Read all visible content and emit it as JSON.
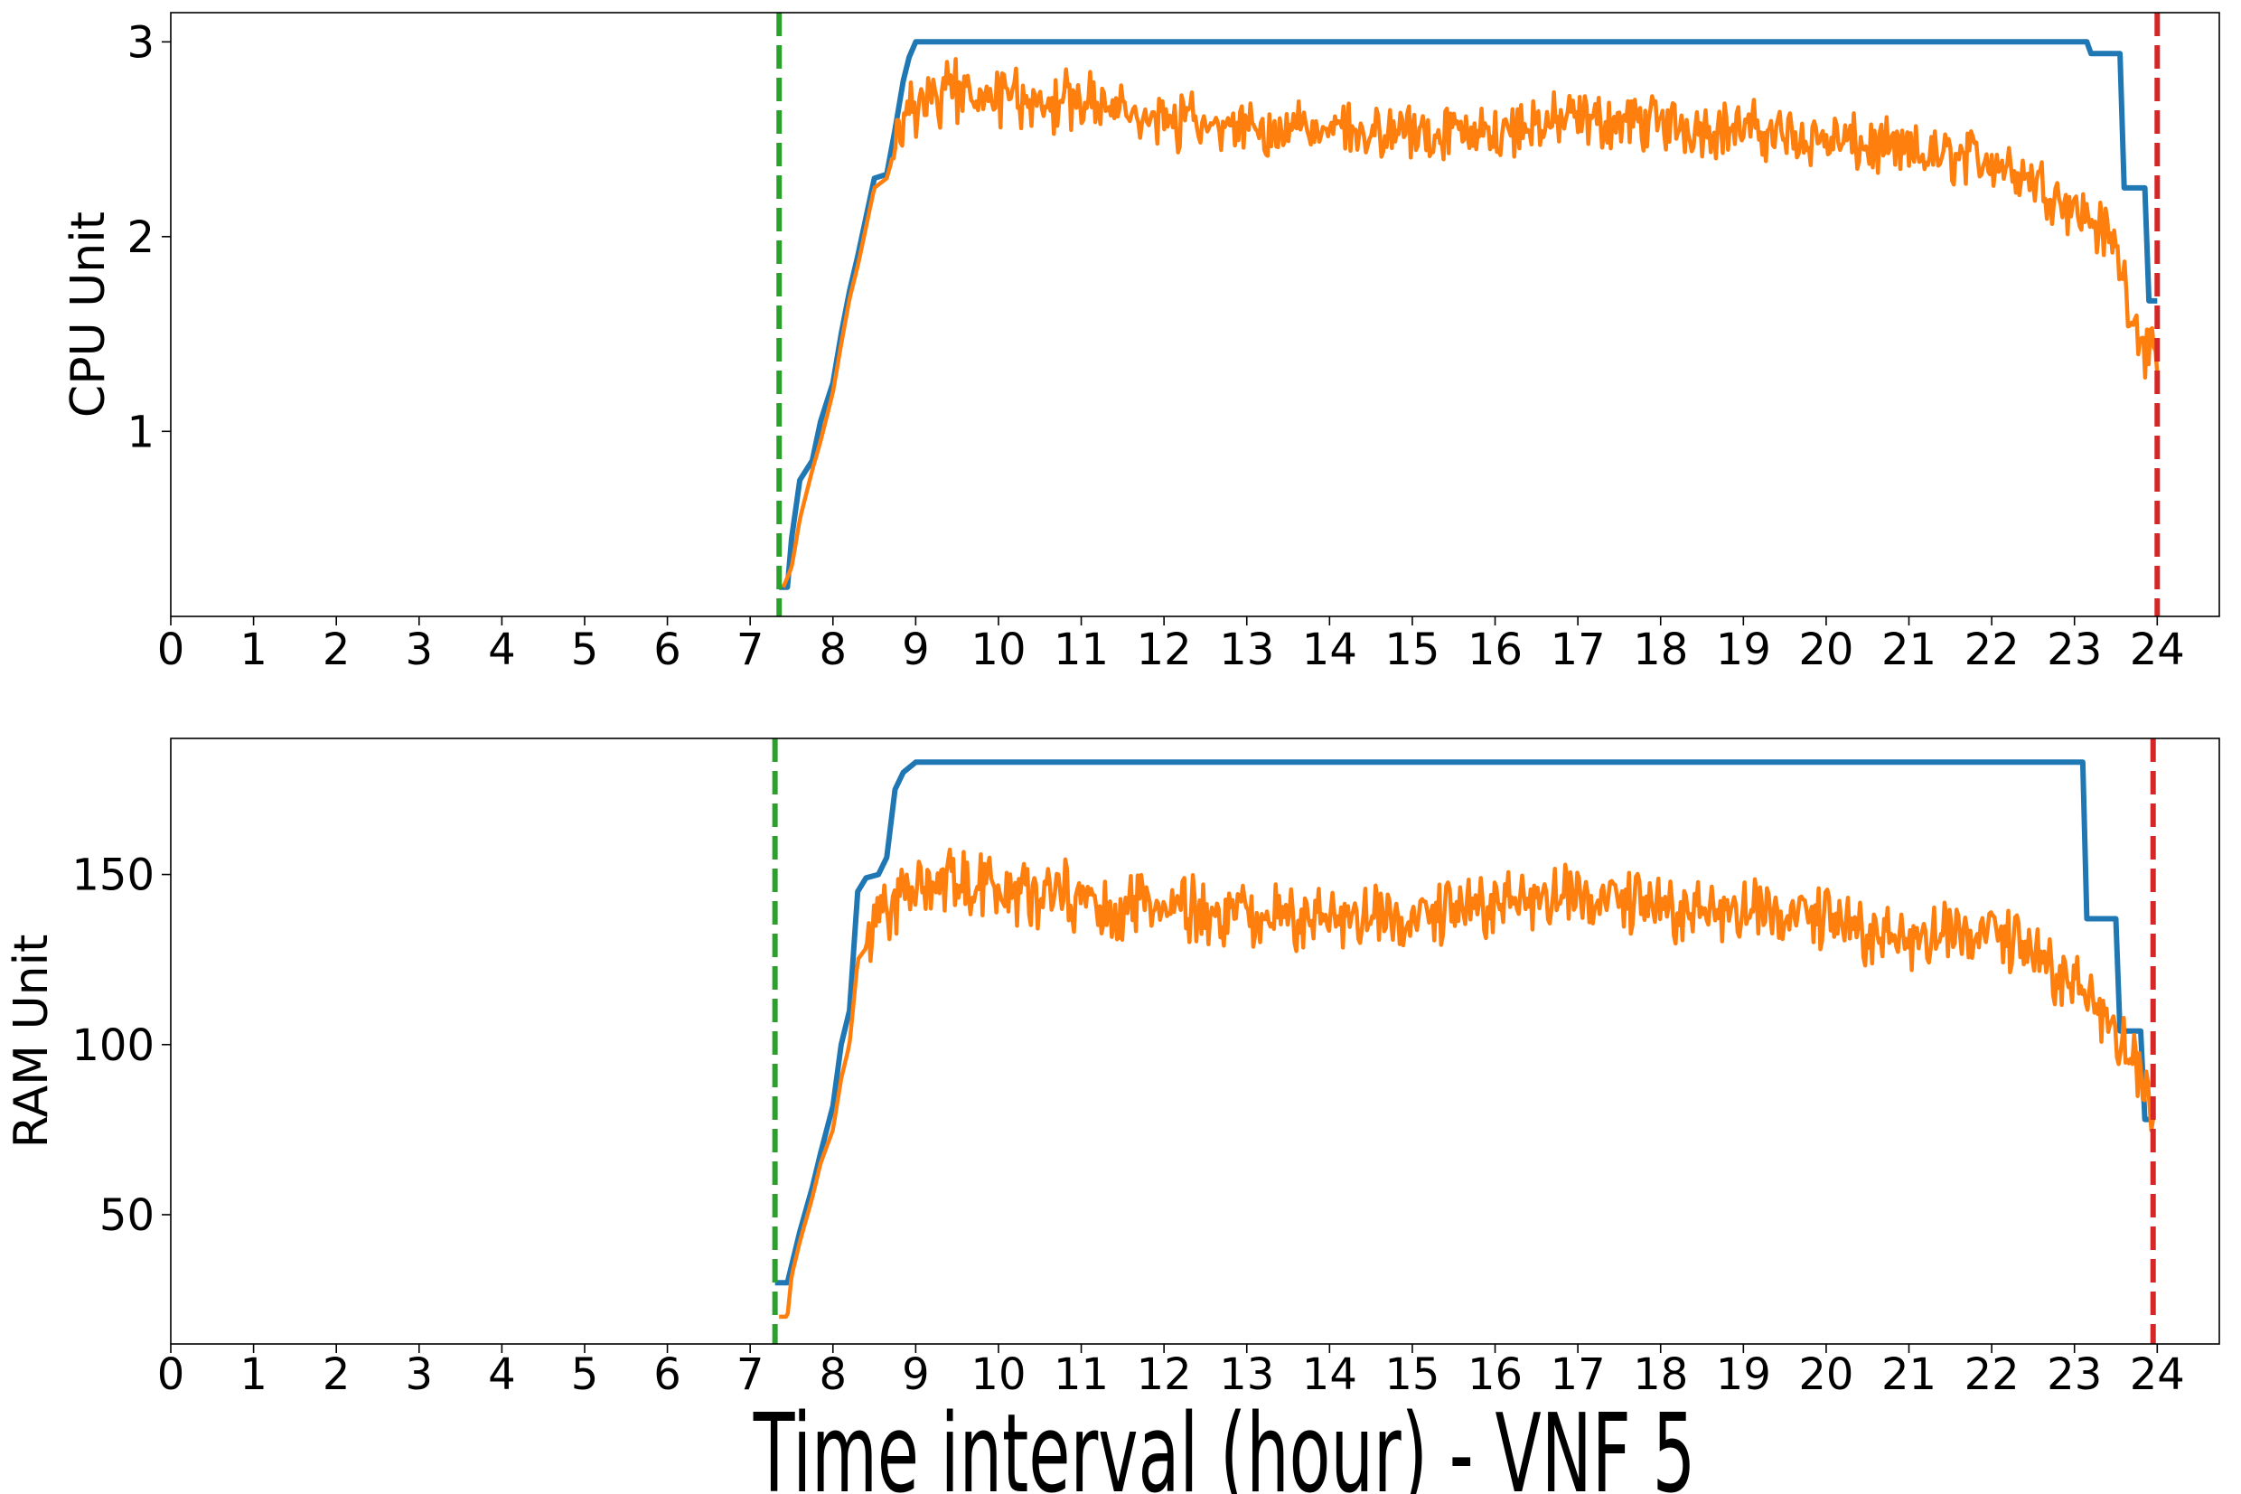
{
  "colors": {
    "allocated": "#1f77b4",
    "usage": "#ff7f0e",
    "start_marker": "#2ca02c",
    "end_marker": "#d62728"
  },
  "xlabel": "Time interval (hour) - VNF 5",
  "chart_data": [
    {
      "type": "line",
      "ylabel": "CPU Unit",
      "xlim": [
        0,
        24.75
      ],
      "ylim": [
        0.05,
        3.15
      ],
      "xticks": [
        0,
        1,
        2,
        3,
        4,
        5,
        6,
        7,
        8,
        9,
        10,
        11,
        12,
        13,
        14,
        15,
        16,
        17,
        18,
        19,
        20,
        21,
        22,
        23,
        24
      ],
      "xtick_labels": [
        "0",
        "1",
        "2",
        "3",
        "4",
        "5",
        "6",
        "7",
        "8",
        "9",
        "10",
        "11",
        "12",
        "13",
        "14",
        "15",
        "16",
        "17",
        "18",
        "19",
        "20",
        "21",
        "22",
        "23",
        "24"
      ],
      "yticks": [
        1,
        2,
        3
      ],
      "ytick_labels": [
        "1",
        "2",
        "3"
      ],
      "vlines": [
        {
          "x": 7.35,
          "color": "start_marker",
          "style": "dashed"
        },
        {
          "x": 24.0,
          "color": "end_marker",
          "style": "dashed"
        }
      ],
      "series": [
        {
          "color": "allocated",
          "points": [
            [
              7.35,
              0.2
            ],
            [
              7.45,
              0.2
            ],
            [
              7.5,
              0.45
            ],
            [
              7.6,
              0.75
            ],
            [
              7.75,
              0.85
            ],
            [
              7.85,
              1.05
            ],
            [
              8.0,
              1.25
            ],
            [
              8.1,
              1.5
            ],
            [
              8.2,
              1.72
            ],
            [
              8.3,
              1.9
            ],
            [
              8.4,
              2.1
            ],
            [
              8.5,
              2.3
            ],
            [
              8.65,
              2.32
            ],
            [
              8.75,
              2.55
            ],
            [
              8.85,
              2.8
            ],
            [
              8.92,
              2.92
            ],
            [
              9.0,
              3.0
            ],
            [
              23.15,
              3.0
            ],
            [
              23.2,
              2.94
            ],
            [
              23.55,
              2.94
            ],
            [
              23.6,
              2.25
            ],
            [
              23.85,
              2.25
            ],
            [
              23.9,
              1.67
            ],
            [
              24.0,
              1.67
            ]
          ]
        },
        {
          "color": "usage",
          "baseline": [
            [
              7.4,
              0.2
            ],
            [
              7.5,
              0.3
            ],
            [
              7.6,
              0.55
            ],
            [
              7.75,
              0.8
            ],
            [
              7.85,
              0.95
            ],
            [
              8.0,
              1.2
            ],
            [
              8.1,
              1.45
            ],
            [
              8.2,
              1.68
            ],
            [
              8.3,
              1.85
            ],
            [
              8.4,
              2.05
            ],
            [
              8.5,
              2.25
            ],
            [
              8.65,
              2.3
            ],
            [
              8.75,
              2.45
            ],
            [
              8.85,
              2.58
            ],
            [
              9.0,
              2.68
            ],
            [
              9.5,
              2.75
            ],
            [
              10.0,
              2.72
            ],
            [
              11.0,
              2.68
            ],
            [
              12.0,
              2.6
            ],
            [
              13.0,
              2.55
            ],
            [
              14.0,
              2.55
            ],
            [
              15.0,
              2.52
            ],
            [
              16.0,
              2.55
            ],
            [
              17.0,
              2.6
            ],
            [
              18.0,
              2.58
            ],
            [
              19.0,
              2.55
            ],
            [
              20.0,
              2.5
            ],
            [
              21.0,
              2.42
            ],
            [
              22.0,
              2.4
            ],
            [
              22.5,
              2.3
            ],
            [
              23.0,
              2.15
            ],
            [
              23.3,
              2.05
            ],
            [
              23.5,
              1.95
            ],
            [
              23.7,
              1.6
            ],
            [
              23.85,
              1.45
            ],
            [
              24.0,
              1.3
            ]
          ],
          "noise": 0.18,
          "noise_start": 8.7
        }
      ]
    },
    {
      "type": "line",
      "ylabel": "RAM Unit",
      "xlim": [
        0,
        24.75
      ],
      "ylim": [
        12,
        190
      ],
      "xticks": [
        0,
        1,
        2,
        3,
        4,
        5,
        6,
        7,
        8,
        9,
        10,
        11,
        12,
        13,
        14,
        15,
        16,
        17,
        18,
        19,
        20,
        21,
        22,
        23,
        24
      ],
      "xtick_labels": [
        "0",
        "1",
        "2",
        "3",
        "4",
        "5",
        "6",
        "7",
        "8",
        "9",
        "10",
        "11",
        "12",
        "13",
        "14",
        "15",
        "16",
        "17",
        "18",
        "19",
        "20",
        "21",
        "22",
        "23",
        "24"
      ],
      "yticks": [
        50,
        100,
        150
      ],
      "ytick_labels": [
        "50",
        "100",
        "150"
      ],
      "vlines": [
        {
          "x": 7.3,
          "color": "start_marker",
          "style": "dashed"
        },
        {
          "x": 23.95,
          "color": "end_marker",
          "style": "dashed"
        }
      ],
      "series": [
        {
          "color": "allocated",
          "points": [
            [
              7.3,
              30
            ],
            [
              7.45,
              30
            ],
            [
              7.5,
              35
            ],
            [
              7.6,
              45
            ],
            [
              7.75,
              58
            ],
            [
              7.85,
              68
            ],
            [
              8.0,
              82
            ],
            [
              8.1,
              100
            ],
            [
              8.2,
              110
            ],
            [
              8.3,
              145
            ],
            [
              8.4,
              149
            ],
            [
              8.55,
              150
            ],
            [
              8.65,
              155
            ],
            [
              8.75,
              175
            ],
            [
              8.85,
              180
            ],
            [
              9.0,
              183
            ],
            [
              23.1,
              183
            ],
            [
              23.15,
              137
            ],
            [
              23.5,
              137
            ],
            [
              23.55,
              104
            ],
            [
              23.8,
              104
            ],
            [
              23.85,
              78
            ],
            [
              23.95,
              78
            ]
          ]
        },
        {
          "color": "usage",
          "baseline": [
            [
              7.35,
              20
            ],
            [
              7.45,
              20
            ],
            [
              7.5,
              32
            ],
            [
              7.6,
              42
            ],
            [
              7.75,
              55
            ],
            [
              7.85,
              65
            ],
            [
              8.0,
              75
            ],
            [
              8.1,
              90
            ],
            [
              8.2,
              100
            ],
            [
              8.3,
              125
            ],
            [
              8.45,
              130
            ],
            [
              8.6,
              138
            ],
            [
              8.75,
              142
            ],
            [
              9.0,
              148
            ],
            [
              9.5,
              150
            ],
            [
              10.0,
              146
            ],
            [
              11.0,
              142
            ],
            [
              12.0,
              140
            ],
            [
              13.0,
              138
            ],
            [
              14.0,
              137
            ],
            [
              15.0,
              135
            ],
            [
              16.0,
              142
            ],
            [
              17.0,
              142
            ],
            [
              18.0,
              140
            ],
            [
              19.0,
              138
            ],
            [
              20.0,
              136
            ],
            [
              21.0,
              130
            ],
            [
              22.0,
              132
            ],
            [
              22.5,
              126
            ],
            [
              23.0,
              118
            ],
            [
              23.3,
              110
            ],
            [
              23.6,
              98
            ],
            [
              23.8,
              88
            ],
            [
              23.95,
              78
            ]
          ],
          "noise": 12,
          "noise_start": 8.4
        }
      ]
    }
  ]
}
